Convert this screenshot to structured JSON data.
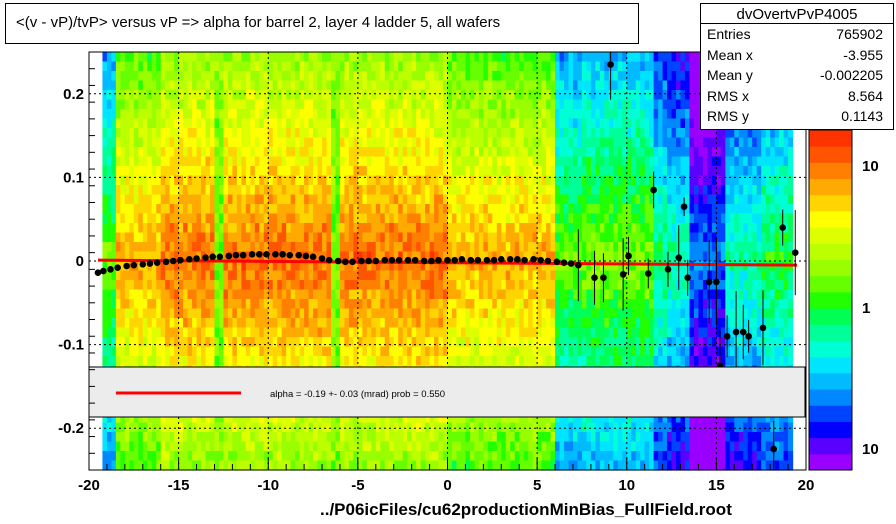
{
  "title": "<(v - vP)/tvP> versus   vP => alpha for barrel 2, layer 4 ladder 5, all wafers",
  "stats": {
    "name": "dvOvertvPvP4005",
    "rows": [
      {
        "label": "Entries",
        "value": "765902"
      },
      {
        "label": "Mean x",
        "value": "-3.955"
      },
      {
        "label": "Mean y",
        "value": "-0.002205"
      },
      {
        "label": "RMS x",
        "value": "8.564"
      },
      {
        "label": "RMS y",
        "value": "0.1143"
      }
    ]
  },
  "fit": {
    "label": "alpha =   -0.19 +-  0.03 (mrad) prob = 0.550",
    "color": "#ff0000"
  },
  "footer": "../P06icFiles/cu62productionMinBias_FullField.root",
  "chart_data": {
    "type": "heatmap",
    "title": "<(v - vP)/tvP> versus   vP => alpha for barrel 2, layer 4 ladder 5, all wafers",
    "xlim": [
      -20,
      20
    ],
    "ylim": [
      -0.25,
      0.25
    ],
    "x_ticks": [
      "-20",
      "-15",
      "-10",
      "-5",
      "0",
      "5",
      "10",
      "15",
      "20"
    ],
    "y_ticks": [
      "-0.2",
      "-0.1",
      "0",
      "0.1",
      "0.2"
    ],
    "colorbar": {
      "scale": "log",
      "tick_labels": [
        "10",
        "1",
        "10"
      ]
    },
    "grid": true,
    "profile_points": {
      "x": [
        -19.5,
        -19.2,
        -18.8,
        -18.4,
        -17.9,
        -17.5,
        -17.0,
        -16.6,
        -16.2,
        -15.7,
        -15.3,
        -14.9,
        -14.4,
        -14.0,
        -13.5,
        -13.1,
        -12.7,
        -12.2,
        -11.8,
        -11.4,
        -10.9,
        -10.5,
        -10.1,
        -9.6,
        -9.2,
        -8.8,
        -8.3,
        -7.9,
        -7.5,
        -7.0,
        -6.6,
        -6.1,
        -5.7,
        -5.3,
        -4.8,
        -4.4,
        -4.0,
        -3.5,
        -3.1,
        -2.7,
        -2.2,
        -1.8,
        -1.3,
        -0.9,
        -0.5,
        0.0,
        0.4,
        0.8,
        1.3,
        1.7,
        2.2,
        2.6,
        3.0,
        3.5,
        3.9,
        4.3,
        4.8,
        5.2,
        5.6,
        6.1,
        6.5,
        6.9,
        7.3,
        8.2,
        8.7,
        9.1,
        9.8,
        10.1,
        11.2,
        11.5,
        12.3,
        12.9,
        13.2,
        13.4,
        14.3,
        14.6,
        15.0,
        15.2,
        15.6,
        16.1,
        16.5,
        16.8,
        17.6,
        18.2,
        18.7,
        19.4
      ],
      "y": [
        -0.014,
        -0.012,
        -0.01,
        -0.008,
        -0.006,
        -0.005,
        -0.004,
        -0.003,
        -0.002,
        -0.001,
        0,
        0.001,
        0.002,
        0.003,
        0.004,
        0.005,
        0.005,
        0.006,
        0.007,
        0.007,
        0.008,
        0.008,
        0.008,
        0.008,
        0.008,
        0.007,
        0.007,
        0.006,
        0.005,
        0.003,
        0.001,
        0,
        -0.001,
        -0.001,
        0,
        0,
        0,
        0.001,
        0.001,
        0.001,
        0.001,
        0.001,
        0,
        0,
        0.001,
        0.001,
        0.001,
        0.002,
        0.001,
        0.001,
        0.001,
        0.001,
        0.002,
        0.002,
        0.002,
        0.001,
        0.002,
        0.001,
        0,
        -0.001,
        -0.002,
        -0.003,
        -0.005,
        -0.02,
        -0.02,
        0.235,
        -0.016,
        0.006,
        -0.015,
        0.085,
        -0.01,
        0.004,
        0.065,
        -0.02,
        0.25,
        -0.025,
        -0.025,
        -0.125,
        -0.09,
        -0.085,
        -0.085,
        -0.09,
        -0.08,
        -0.225,
        0.04,
        0.01
      ]
    },
    "fit_line": {
      "x": [
        -19.5,
        19.5
      ],
      "y": [
        0.001,
        -0.005
      ]
    }
  }
}
